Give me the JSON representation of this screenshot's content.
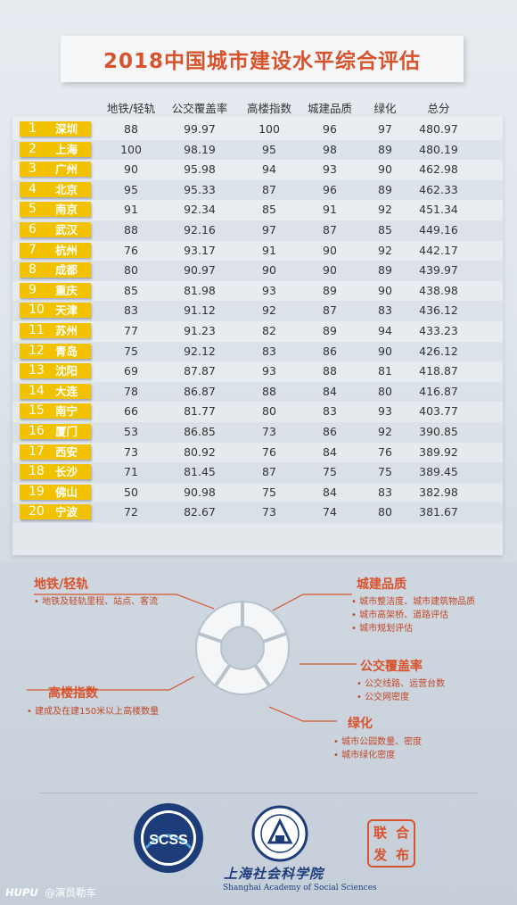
{
  "title": "2018中国城市建设水平综合评估",
  "chart_data": {
    "type": "table",
    "columns": [
      "地铁/轻轨",
      "公交覆盖率",
      "高楼指数",
      "城建品质",
      "绿化",
      "总分"
    ],
    "rows": [
      {
        "rank": "1",
        "city": "深圳",
        "values": [
          "88",
          "99.97",
          "100",
          "96",
          "97",
          "480.97"
        ]
      },
      {
        "rank": "2",
        "city": "上海",
        "values": [
          "100",
          "98.19",
          "95",
          "98",
          "89",
          "480.19"
        ]
      },
      {
        "rank": "3",
        "city": "广州",
        "values": [
          "90",
          "95.98",
          "94",
          "93",
          "90",
          "462.98"
        ]
      },
      {
        "rank": "4",
        "city": "北京",
        "values": [
          "95",
          "95.33",
          "87",
          "96",
          "89",
          "462.33"
        ]
      },
      {
        "rank": "5",
        "city": "南京",
        "values": [
          "91",
          "92.34",
          "85",
          "91",
          "92",
          "451.34"
        ]
      },
      {
        "rank": "6",
        "city": "武汉",
        "values": [
          "88",
          "92.16",
          "97",
          "87",
          "85",
          "449.16"
        ]
      },
      {
        "rank": "7",
        "city": "杭州",
        "values": [
          "76",
          "93.17",
          "91",
          "90",
          "92",
          "442.17"
        ]
      },
      {
        "rank": "8",
        "city": "成都",
        "values": [
          "80",
          "90.97",
          "90",
          "90",
          "89",
          "439.97"
        ]
      },
      {
        "rank": "9",
        "city": "重庆",
        "values": [
          "85",
          "81.98",
          "93",
          "89",
          "90",
          "438.98"
        ]
      },
      {
        "rank": "10",
        "city": "天津",
        "values": [
          "83",
          "91.12",
          "92",
          "87",
          "83",
          "436.12"
        ]
      },
      {
        "rank": "11",
        "city": "苏州",
        "values": [
          "77",
          "91.23",
          "82",
          "89",
          "94",
          "433.23"
        ]
      },
      {
        "rank": "12",
        "city": "青岛",
        "values": [
          "75",
          "92.12",
          "83",
          "86",
          "90",
          "426.12"
        ]
      },
      {
        "rank": "13",
        "city": "沈阳",
        "values": [
          "69",
          "87.87",
          "93",
          "88",
          "81",
          "418.87"
        ]
      },
      {
        "rank": "14",
        "city": "大连",
        "values": [
          "78",
          "86.87",
          "88",
          "84",
          "80",
          "416.87"
        ]
      },
      {
        "rank": "15",
        "city": "南宁",
        "values": [
          "66",
          "81.77",
          "80",
          "83",
          "93",
          "403.77"
        ]
      },
      {
        "rank": "16",
        "city": "厦门",
        "values": [
          "53",
          "86.85",
          "73",
          "86",
          "92",
          "390.85"
        ]
      },
      {
        "rank": "17",
        "city": "西安",
        "values": [
          "73",
          "80.92",
          "76",
          "84",
          "76",
          "389.92"
        ]
      },
      {
        "rank": "18",
        "city": "长沙",
        "values": [
          "71",
          "81.45",
          "87",
          "75",
          "75",
          "389.45"
        ]
      },
      {
        "rank": "19",
        "city": "佛山",
        "values": [
          "50",
          "90.98",
          "75",
          "84",
          "83",
          "382.98"
        ]
      },
      {
        "rank": "20",
        "city": "宁波",
        "values": [
          "72",
          "82.67",
          "73",
          "74",
          "80",
          "381.67"
        ]
      }
    ]
  },
  "legend": {
    "metro": {
      "title": "地铁/轻轨",
      "items": [
        "• 地铁及轻轨里程、站点、客流"
      ]
    },
    "urban": {
      "title": "城建品质",
      "items": [
        "• 城市整洁度、城市建筑物品质",
        "• 城市高架桥、道路评估",
        "• 城市规划评估"
      ]
    },
    "bus": {
      "title": "公交覆盖率",
      "items": [
        "• 公交线路、运营台数",
        "• 公交网密度"
      ]
    },
    "highrise": {
      "title": "高楼指数",
      "items": [
        "• 建成及在建150米以上高楼数量"
      ]
    },
    "green": {
      "title": "绿化",
      "items": [
        "• 城市公园数量、密度",
        "• 城市绿化密度"
      ]
    }
  },
  "footer": {
    "scss_logo_text": "SCSS",
    "sass_cn": "上海社会科学院",
    "sass_en": "Shanghai Academy of Social Sciences",
    "stamp_chars": [
      "联",
      "合",
      "发",
      "布"
    ],
    "watermark_brand": "HUPU",
    "watermark_user": "@演员勒车"
  },
  "colors": {
    "accent": "#d8532c",
    "badge": "#f2c200",
    "navy": "#1c3d7a"
  }
}
